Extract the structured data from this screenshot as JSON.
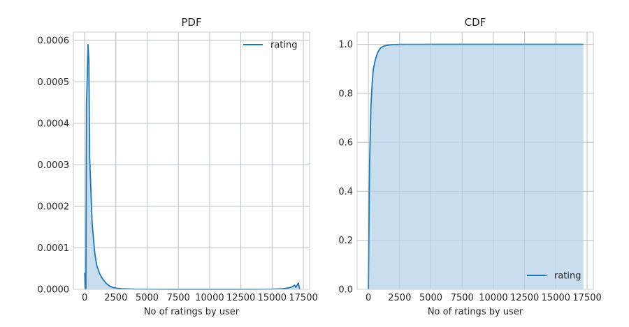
{
  "chart_data": [
    {
      "type": "area",
      "title": "PDF",
      "xlabel": "No of ratings by user",
      "ylabel": "",
      "xlim": [
        -900,
        18000
      ],
      "ylim": [
        0,
        0.00062
      ],
      "x_ticks": [
        0,
        2500,
        5000,
        7500,
        10000,
        12500,
        15000,
        17500
      ],
      "x_tick_labels": [
        "0",
        "2500",
        "5000",
        "7500",
        "10000",
        "12500",
        "15000",
        "17500"
      ],
      "y_ticks": [
        0,
        0.0001,
        0.0002,
        0.0003,
        0.0004,
        0.0005,
        0.0006
      ],
      "y_tick_labels": [
        "0.0000",
        "0.0001",
        "0.0002",
        "0.0003",
        "0.0004",
        "0.0005",
        "0.0006"
      ],
      "grid": true,
      "legend": {
        "position": "top-right",
        "entries": [
          "rating"
        ]
      },
      "series": [
        {
          "name": "rating",
          "color": "#1f77b4",
          "fill": "#c5dbed",
          "x": [
            0,
            40,
            100,
            150,
            200,
            270,
            340,
            400,
            500,
            600,
            700,
            800,
            900,
            1000,
            1200,
            1400,
            1700,
            2000,
            2300,
            2600,
            3000,
            4000,
            6000,
            8000,
            10000,
            12000,
            14000,
            15000,
            15500,
            15800,
            16000,
            16200,
            16400,
            16600,
            16800,
            16900,
            17000,
            17100,
            17200
          ],
          "y": [
            4e-05,
            5e-06,
            0.0,
            0.00045,
            0.0005,
            0.00059,
            0.00055,
            0.00032,
            0.00024,
            0.00016,
            0.000125,
            9e-05,
            7e-05,
            5.5e-05,
            3.8e-05,
            2.7e-05,
            1.5e-05,
            8e-06,
            4e-06,
            2.5e-06,
            1.5e-06,
            5e-07,
            2e-07,
            1e-07,
            1e-07,
            1e-07,
            2e-07,
            5e-07,
            1e-06,
            1.5e-06,
            2e-06,
            3e-06,
            4e-06,
            6e-06,
            1e-05,
            5e-06,
            1e-05,
            1.5e-05,
            1e-06
          ]
        }
      ]
    },
    {
      "type": "area",
      "title": "CDF",
      "xlabel": "No of ratings by user",
      "ylabel": "",
      "xlim": [
        -900,
        18000
      ],
      "ylim": [
        0,
        1.05
      ],
      "x_ticks": [
        0,
        2500,
        5000,
        7500,
        10000,
        12500,
        15000,
        17500
      ],
      "x_tick_labels": [
        "0",
        "2500",
        "5000",
        "7500",
        "10000",
        "12500",
        "15000",
        "17500"
      ],
      "y_ticks": [
        0,
        0.2,
        0.4,
        0.6,
        0.8,
        1.0
      ],
      "y_tick_labels": [
        "0.0",
        "0.2",
        "0.4",
        "0.6",
        "0.8",
        "1.0"
      ],
      "grid": true,
      "legend": {
        "position": "bottom-right",
        "entries": [
          "rating"
        ]
      },
      "series": [
        {
          "name": "rating",
          "color": "#1f77b4",
          "fill": "#c5dbed",
          "x": [
            0,
            50,
            100,
            150,
            200,
            250,
            300,
            350,
            400,
            500,
            600,
            700,
            800,
            900,
            1000,
            1200,
            1400,
            1600,
            1800,
            2000,
            2300,
            2600,
            3000,
            4000,
            6000,
            8000,
            10000,
            12000,
            14000,
            16000,
            17200
          ],
          "y": [
            0.0,
            0.28,
            0.52,
            0.63,
            0.74,
            0.79,
            0.84,
            0.87,
            0.9,
            0.925,
            0.945,
            0.96,
            0.972,
            0.98,
            0.986,
            0.992,
            0.995,
            0.997,
            0.998,
            0.999,
            0.9993,
            0.9996,
            0.9998,
            0.9999,
            1.0,
            1.0,
            1.0,
            1.0,
            1.0,
            1.0,
            1.0
          ]
        }
      ]
    }
  ]
}
